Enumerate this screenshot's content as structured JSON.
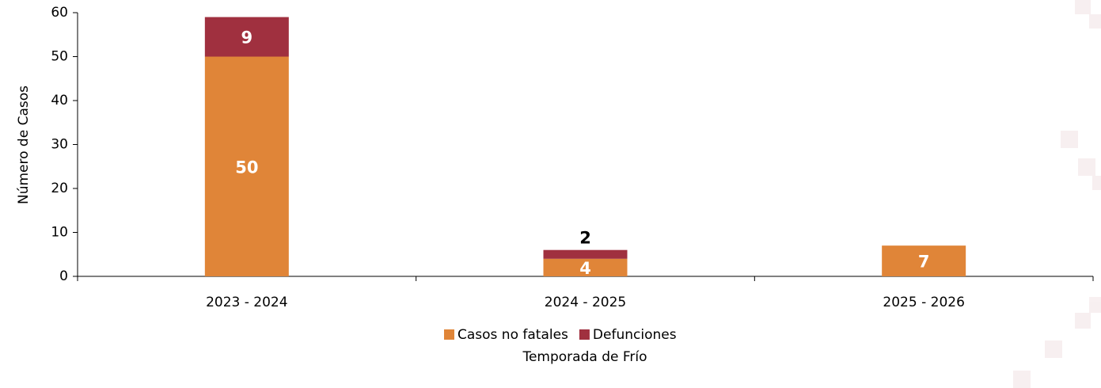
{
  "chart_data": {
    "type": "stacked-bar",
    "categories": [
      "2023 - 2024",
      "2024 - 2025",
      "2025 - 2026"
    ],
    "series": [
      {
        "name": "Casos no fatales",
        "color": "#e08538",
        "values": [
          50,
          4,
          7
        ]
      },
      {
        "name": "Defunciones",
        "color": "#a0303f",
        "values": [
          9,
          2,
          null
        ]
      }
    ],
    "ylim": [
      0,
      60
    ],
    "yticks": [
      0,
      10,
      20,
      30,
      40,
      50,
      60
    ],
    "ylabel": "Número de Casos",
    "xlabel": "Temporada de Frío"
  }
}
